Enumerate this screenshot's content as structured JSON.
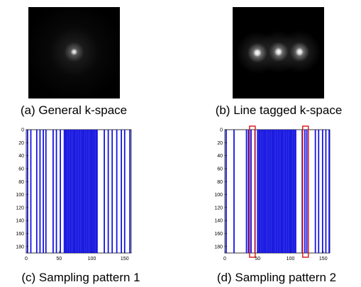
{
  "panels": {
    "a": {
      "caption": "(a) General k-space",
      "peaks": 1
    },
    "b": {
      "caption": "(b) Line tagged k-space",
      "peaks": 3
    },
    "c": {
      "caption": "(c) Sampling pattern 1"
    },
    "d": {
      "caption": "(d) Sampling pattern 2"
    }
  },
  "plot_axes": {
    "x_ticks": [
      "0",
      "50",
      "100",
      "150"
    ],
    "y_ticks": [
      "0",
      "20",
      "40",
      "60",
      "80",
      "100",
      "120",
      "140",
      "160",
      "180"
    ]
  },
  "chart_data": [
    {
      "type": "bar",
      "title": "",
      "xlabel": "",
      "ylabel": "",
      "xlim": [
        0,
        160
      ],
      "ylim": [
        0,
        190
      ],
      "y_reversed": true,
      "sampled_lines_x": [
        2,
        7,
        16,
        21,
        26,
        30,
        41,
        46,
        52,
        58,
        60,
        62,
        64,
        66,
        68,
        70,
        72,
        74,
        76,
        78,
        80,
        82,
        84,
        86,
        88,
        90,
        92,
        94,
        96,
        98,
        100,
        102,
        104,
        106,
        108,
        119,
        125,
        131,
        138,
        145,
        150,
        158
      ],
      "color": "#1010e0"
    },
    {
      "type": "bar",
      "title": "",
      "xlabel": "",
      "ylabel": "",
      "xlim": [
        0,
        160
      ],
      "ylim": [
        0,
        190
      ],
      "y_reversed": true,
      "sampled_lines_x": [
        2,
        14,
        33,
        36,
        40,
        46,
        50,
        52,
        54,
        56,
        58,
        60,
        62,
        64,
        66,
        68,
        70,
        72,
        74,
        76,
        78,
        80,
        82,
        84,
        86,
        88,
        90,
        92,
        94,
        96,
        98,
        100,
        102,
        104,
        106,
        108,
        118,
        122,
        125,
        138,
        143,
        149,
        154,
        159
      ],
      "highlight_x": [
        42,
        123
      ],
      "color": "#1010e0",
      "highlight_color": "#dd1111"
    }
  ]
}
